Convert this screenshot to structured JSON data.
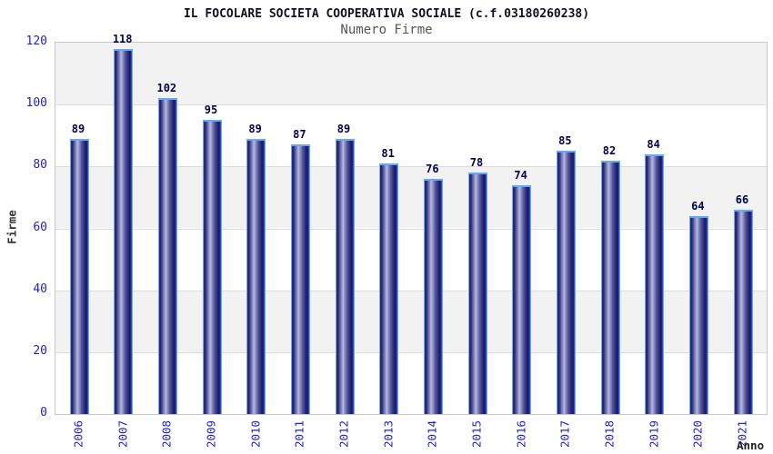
{
  "header": {
    "title": "IL FOCOLARE SOCIETA COOPERATIVA SOCIALE (c.f.03180260238)",
    "subtitle": "Numero Firme"
  },
  "chart_data": {
    "type": "bar",
    "title": "IL FOCOLARE SOCIETA COOPERATIVA SOCIALE (c.f.03180260238)",
    "subtitle": "Numero Firme",
    "xlabel": "Anno",
    "ylabel": "Firme",
    "categories": [
      "2006",
      "2007",
      "2008",
      "2009",
      "2010",
      "2011",
      "2012",
      "2013",
      "2014",
      "2015",
      "2016",
      "2017",
      "2018",
      "2019",
      "2020",
      "2021"
    ],
    "values": [
      89,
      118,
      102,
      95,
      89,
      87,
      89,
      81,
      76,
      78,
      74,
      85,
      82,
      84,
      64,
      66
    ],
    "ylim": [
      0,
      120
    ],
    "yticks": [
      0,
      20,
      40,
      60,
      80,
      100,
      120
    ],
    "grid": "horizontal",
    "legend": "none",
    "value_labels": "above-bars",
    "colors": {
      "tick_label": "#2222cc",
      "value_label": "#00004d",
      "title": "#101020",
      "subtitle": "#555555",
      "band_gray": "#f2f2f2",
      "band_white": "#ffffff",
      "gridline": "#dcdcdc",
      "plot_border": "#c8c8c8",
      "bar_dark": "#1c1c68",
      "bar_light": "#b4b9e0",
      "bar_border": "#64a8ff",
      "bar_right_edge": "#3a5fe8",
      "axis_title": "#333333"
    }
  }
}
